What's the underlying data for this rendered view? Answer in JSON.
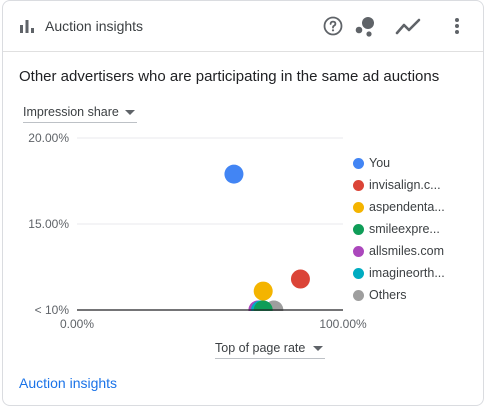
{
  "header": {
    "title": "Auction insights",
    "icons": [
      "bar-chart-icon",
      "help-icon",
      "scatter-chart-icon",
      "line-chart-icon",
      "more-vert-icon"
    ]
  },
  "subtitle": "Other advertisers who are participating in the same ad auctions",
  "metric_dropdown": {
    "label": "Impression share"
  },
  "xaxis_dropdown": {
    "label": "Top of page rate"
  },
  "footer": {
    "link": "Auction insights"
  },
  "legend": [
    {
      "label": "You",
      "color": "#4285f4"
    },
    {
      "label": "invisalign.c...",
      "color": "#db4437"
    },
    {
      "label": "aspendenta...",
      "color": "#f4b400"
    },
    {
      "label": "smileexpre...",
      "color": "#0f9d58"
    },
    {
      "label": "allsmiles.com",
      "color": "#ab47bc"
    },
    {
      "label": "imagineorth...",
      "color": "#00acc1"
    },
    {
      "label": "Others",
      "color": "#9e9e9e"
    }
  ],
  "chart_data": {
    "type": "scatter",
    "xlabel": "Top of page rate",
    "ylabel": "Impression share",
    "x_ticks": [
      "0.00%",
      "100.00%"
    ],
    "y_ticks": [
      "20.00%",
      "15.00%",
      "< 10%"
    ],
    "xlim": [
      0,
      100
    ],
    "ylim": [
      10,
      20
    ],
    "series": [
      {
        "name": "You",
        "x": 59,
        "y": 17.9,
        "color": "#4285f4"
      },
      {
        "name": "invisalign.c...",
        "x": 84,
        "y": 11.8,
        "color": "#db4437"
      },
      {
        "name": "aspendenta...",
        "x": 70,
        "y": 11.1,
        "color": "#f4b400"
      },
      {
        "name": "allsmiles.com",
        "x": 68,
        "y": 10.0,
        "color": "#ab47bc"
      },
      {
        "name": "imagineorth...",
        "x": 69,
        "y": 10.0,
        "color": "#00acc1"
      },
      {
        "name": "Others",
        "x": 74,
        "y": 10.0,
        "color": "#9e9e9e"
      },
      {
        "name": "smileexpre...",
        "x": 70,
        "y": 10.0,
        "color": "#0f9d58"
      }
    ]
  }
}
